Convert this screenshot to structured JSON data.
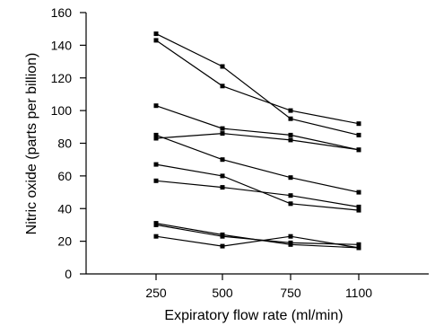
{
  "chart_data": {
    "type": "line",
    "x": [
      "250",
      "500",
      "750",
      "1100"
    ],
    "xlabel": "Expiratory flow rate (ml/min)",
    "ylabel": "Nitric oxide (parts per billion)",
    "ylim": [
      0,
      160
    ],
    "yticks": [
      "0",
      "20",
      "40",
      "60",
      "80",
      "100",
      "120",
      "140",
      "160"
    ],
    "grid": false,
    "legend": "none",
    "marker": "square",
    "line_color": "#000000",
    "series": [
      {
        "values": [
          147,
          127,
          95,
          85
        ]
      },
      {
        "values": [
          143,
          115,
          100,
          92
        ]
      },
      {
        "values": [
          103,
          89,
          85,
          76
        ]
      },
      {
        "values": [
          85,
          70,
          59,
          50
        ]
      },
      {
        "values": [
          83,
          86,
          82,
          76
        ]
      },
      {
        "values": [
          67,
          60,
          43,
          39
        ]
      },
      {
        "values": [
          57,
          53,
          48,
          41
        ]
      },
      {
        "values": [
          31,
          24,
          18,
          16
        ]
      },
      {
        "values": [
          30,
          23,
          19,
          18
        ]
      },
      {
        "values": [
          23,
          17,
          23,
          16
        ]
      }
    ]
  }
}
